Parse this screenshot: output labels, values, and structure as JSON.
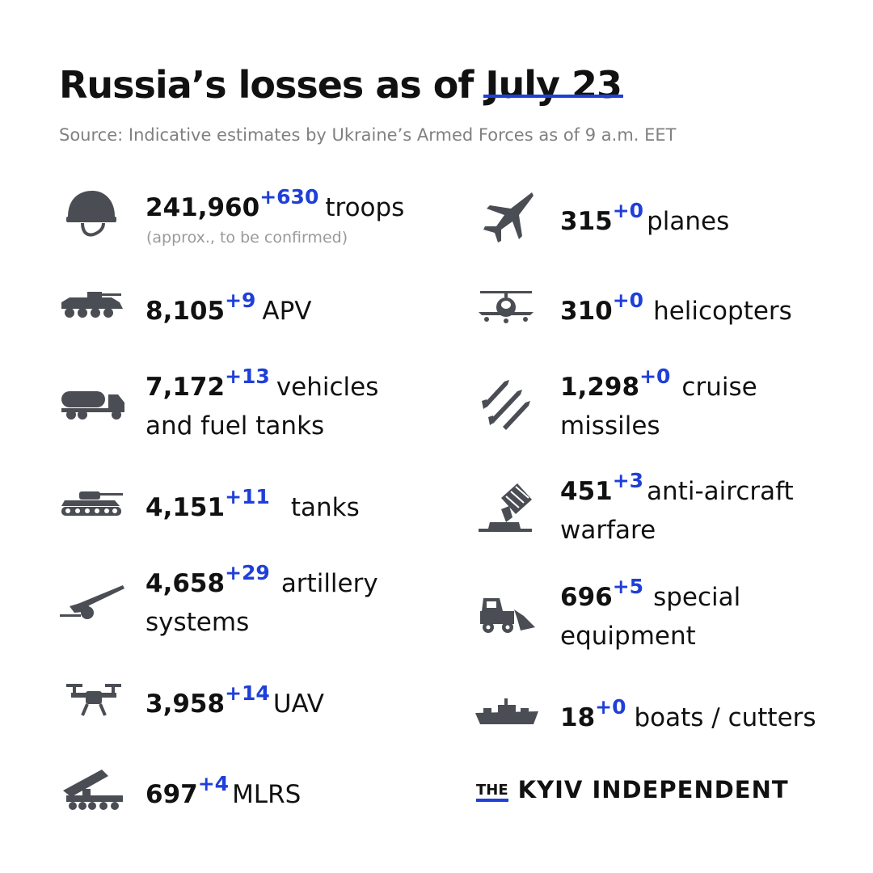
{
  "title_prefix": "Russia’s losses as of",
  "title_date": "July 23",
  "source": "Source: Indicative estimates by Ukraine’s Armed Forces as of 9 a.m. EET",
  "accent_color": "#1f3fd8",
  "items": [
    {
      "icon": "helmet-icon",
      "value": "241,960",
      "delta": "+630",
      "label": "troops",
      "label2": "",
      "note": "(approx., to be confirmed)"
    },
    {
      "icon": "apv-icon",
      "value": "8,105",
      "delta": "+9",
      "label": "APV",
      "label2": ""
    },
    {
      "icon": "fuel-truck-icon",
      "value": "7,172",
      "delta": "+13",
      "label": "vehicles",
      "label2": "and fuel tanks"
    },
    {
      "icon": "tank-icon",
      "value": "4,151",
      "delta": "+11",
      "label": "tanks",
      "label2": ""
    },
    {
      "icon": "artillery-icon",
      "value": "4,658",
      "delta": "+29",
      "label": "artillery",
      "label2": "systems"
    },
    {
      "icon": "drone-icon",
      "value": "3,958",
      "delta": "+14",
      "label": "UAV",
      "label2": ""
    },
    {
      "icon": "mlrs-icon",
      "value": "697",
      "delta": "+4",
      "label": "MLRS",
      "label2": ""
    },
    {
      "icon": "plane-icon",
      "value": "315",
      "delta": "+0",
      "label": "planes",
      "label2": ""
    },
    {
      "icon": "helicopter-icon",
      "value": "310",
      "delta": "+0",
      "label": "helicopters",
      "label2": ""
    },
    {
      "icon": "missiles-icon",
      "value": "1,298",
      "delta": "+0",
      "label": "cruise",
      "label2": "missiles"
    },
    {
      "icon": "anti-aircraft-icon",
      "value": "451",
      "delta": "+3",
      "label": "anti-aircraft",
      "label2": "warfare"
    },
    {
      "icon": "loader-icon",
      "value": "696",
      "delta": "+5",
      "label": "special",
      "label2": "equipment"
    },
    {
      "icon": "boat-icon",
      "value": "18",
      "delta": "+0",
      "label": "boats / cutters",
      "label2": ""
    }
  ],
  "brand": {
    "the": "THE",
    "name": "KYIV INDEPENDENT"
  }
}
